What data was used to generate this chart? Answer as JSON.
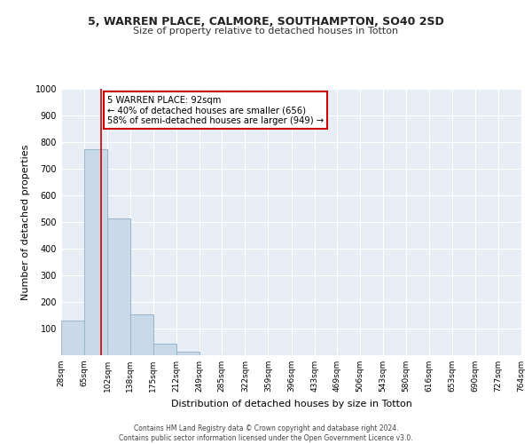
{
  "title1": "5, WARREN PLACE, CALMORE, SOUTHAMPTON, SO40 2SD",
  "title2": "Size of property relative to detached houses in Totton",
  "xlabel": "Distribution of detached houses by size in Totton",
  "ylabel": "Number of detached properties",
  "bin_edges": [
    28,
    65,
    102,
    138,
    175,
    212,
    249,
    285,
    322,
    359,
    396,
    433,
    469,
    506,
    543,
    580,
    616,
    653,
    690,
    727,
    764
  ],
  "bar_heights": [
    130,
    775,
    515,
    155,
    45,
    15,
    0,
    0,
    0,
    0,
    0,
    0,
    0,
    0,
    0,
    0,
    0,
    0,
    0,
    0
  ],
  "bar_color": "#c9d9e8",
  "bar_edge_color": "#a0b8cc",
  "bar_linewidth": 0.8,
  "bg_color": "#e8eef5",
  "grid_color": "#ffffff",
  "property_value": 92,
  "vline_color": "#cc0000",
  "annotation_line1": "5 WARREN PLACE: 92sqm",
  "annotation_line2": "← 40% of detached houses are smaller (656)",
  "annotation_line3": "58% of semi-detached houses are larger (949) →",
  "annotation_box_color": "#cc0000",
  "ylim": [
    0,
    1000
  ],
  "yticks": [
    100,
    200,
    300,
    400,
    500,
    600,
    700,
    800,
    900,
    1000
  ],
  "fig_bg_color": "#ffffff",
  "footer_line1": "Contains HM Land Registry data © Crown copyright and database right 2024.",
  "footer_line2": "Contains public sector information licensed under the Open Government Licence v3.0."
}
